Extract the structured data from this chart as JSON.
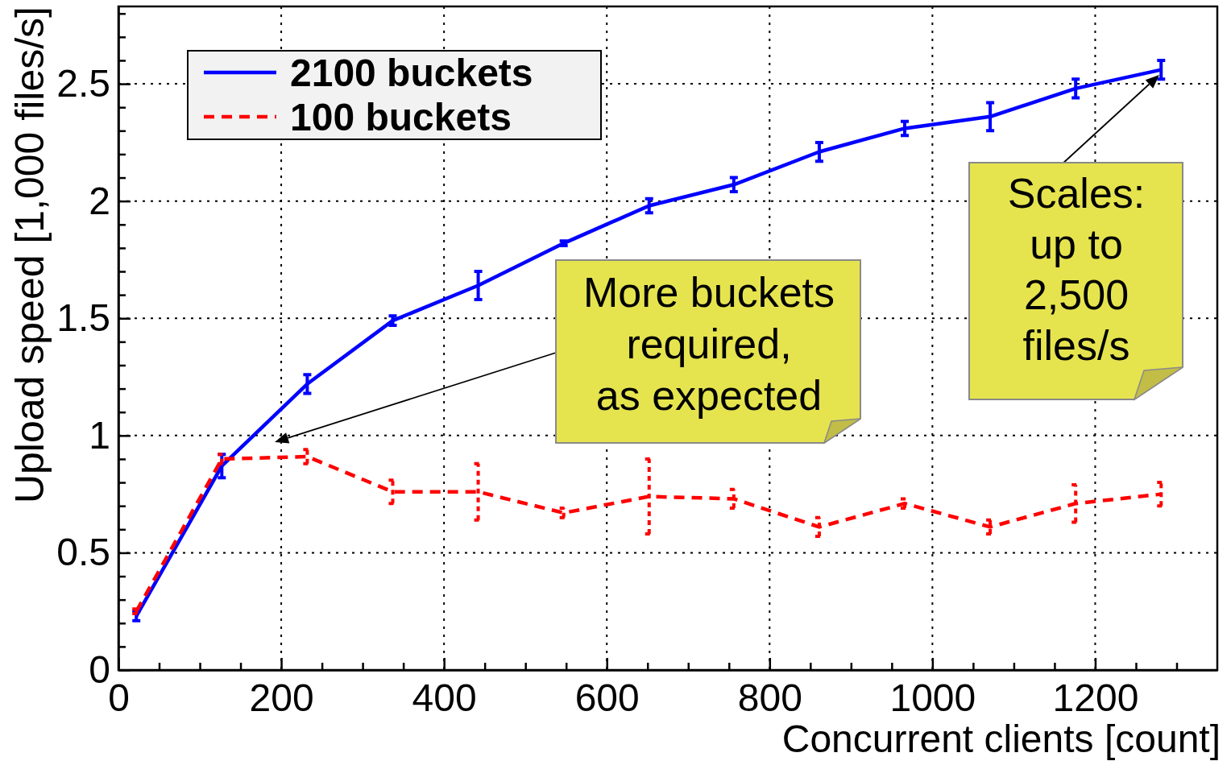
{
  "chart_data": {
    "type": "line",
    "xlabel": "Concurrent clients [count]",
    "ylabel": "Upload speed [1,000 files/s]",
    "x": [
      22,
      127,
      232,
      337,
      442,
      547,
      652,
      756,
      861,
      966,
      1071,
      1176,
      1281
    ],
    "series": [
      {
        "name": "2100 buckets",
        "color": "#0000ff",
        "line_style": "solid",
        "values": [
          0.23,
          0.87,
          1.22,
          1.49,
          1.64,
          1.82,
          1.98,
          2.07,
          2.21,
          2.31,
          2.36,
          2.48,
          2.56
        ],
        "errors": [
          0.02,
          0.05,
          0.04,
          0.02,
          0.06,
          0.01,
          0.03,
          0.03,
          0.04,
          0.03,
          0.06,
          0.04,
          0.04
        ]
      },
      {
        "name": "100 buckets",
        "color": "#ff0000",
        "line_style": "dashed",
        "values": [
          0.25,
          0.9,
          0.91,
          0.76,
          0.76,
          0.67,
          0.74,
          0.73,
          0.61,
          0.71,
          0.61,
          0.71,
          0.75
        ],
        "errors": [
          0.01,
          0.02,
          0.03,
          0.05,
          0.12,
          0.02,
          0.16,
          0.04,
          0.04,
          0.02,
          0.03,
          0.08,
          0.05
        ]
      }
    ],
    "xlim": [
      0,
      1350
    ],
    "xticks": [
      0,
      {
        "value": 50,
        "label": null
      },
      {
        "value": 100,
        "label": null
      },
      {
        "value": 150,
        "label": null
      },
      200,
      {
        "value": 250,
        "label": null
      },
      {
        "value": 300,
        "label": null
      },
      {
        "value": 350,
        "label": null
      },
      400,
      {
        "value": 450,
        "label": null
      },
      {
        "value": 500,
        "label": null
      },
      {
        "value": 550,
        "label": null
      },
      600,
      {
        "value": 650,
        "label": null
      },
      {
        "value": 700,
        "label": null
      },
      {
        "value": 750,
        "label": null
      },
      800,
      {
        "value": 850,
        "label": null
      },
      {
        "value": 900,
        "label": null
      },
      {
        "value": 950,
        "label": null
      },
      1000,
      {
        "value": 1050,
        "label": null
      },
      {
        "value": 1100,
        "label": null
      },
      {
        "value": 1150,
        "label": null
      },
      1200,
      {
        "value": 1250,
        "label": null
      },
      {
        "value": 1300,
        "label": null
      }
    ],
    "ylim": [
      0,
      2.83
    ],
    "yticks": [
      0,
      {
        "value": 0.1,
        "label": null
      },
      {
        "value": 0.2,
        "label": null
      },
      {
        "value": 0.3,
        "label": null
      },
      {
        "value": 0.4,
        "label": null
      },
      0.5,
      {
        "value": 0.6,
        "label": null
      },
      {
        "value": 0.7,
        "label": null
      },
      {
        "value": 0.8,
        "label": null
      },
      {
        "value": 0.9,
        "label": null
      },
      1,
      {
        "value": 1.1,
        "label": null
      },
      {
        "value": 1.2,
        "label": null
      },
      {
        "value": 1.3,
        "label": null
      },
      {
        "value": 1.4,
        "label": null
      },
      1.5,
      {
        "value": 1.6,
        "label": null
      },
      {
        "value": 1.7,
        "label": null
      },
      {
        "value": 1.8,
        "label": null
      },
      {
        "value": 1.9,
        "label": null
      },
      2,
      {
        "value": 2.1,
        "label": null
      },
      {
        "value": 2.2,
        "label": null
      },
      {
        "value": 2.3,
        "label": null
      },
      {
        "value": 2.4,
        "label": null
      },
      2.5,
      {
        "value": 2.6,
        "label": null
      },
      {
        "value": 2.7,
        "label": null
      },
      {
        "value": 2.8,
        "label": null
      }
    ],
    "grid": true,
    "legend": "top left",
    "annotations": [
      "More buckets\nrequired,\nas expected",
      "Scales:\nup to\n2,500\nfiles/s"
    ]
  }
}
